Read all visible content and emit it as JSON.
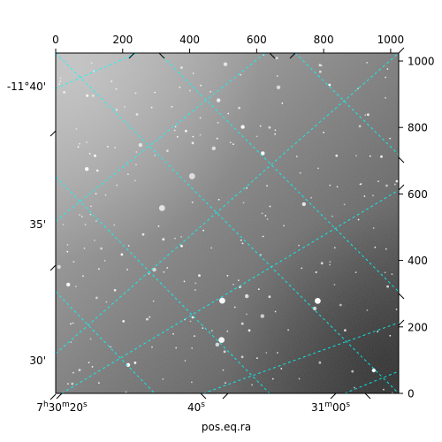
{
  "chart_data": {
    "type": "image",
    "colormap": "gray",
    "xlabel": "pos.eq.ra",
    "ylabel": "",
    "pixel_axes": {
      "x": {
        "range": [
          0,
          1024
        ],
        "ticks": [
          0,
          200,
          400,
          600,
          800,
          1000
        ],
        "labels": [
          "0",
          "200",
          "400",
          "600",
          "800",
          "1000"
        ],
        "position": "top"
      },
      "y": {
        "range": [
          0,
          1024
        ],
        "ticks": [
          0,
          200,
          400,
          600,
          800,
          1000
        ],
        "labels": [
          "0",
          "200",
          "400",
          "600",
          "800",
          "1000"
        ],
        "position": "right"
      }
    },
    "world_axes": {
      "ra": {
        "position": "bottom",
        "labels": [
          "7h30m20s",
          "40s",
          "31m00s"
        ]
      },
      "dec": {
        "position": "left",
        "labels": [
          "30'",
          "35'",
          "-11°40'"
        ]
      }
    },
    "grid": {
      "color": "#00ffff",
      "style": "dashed",
      "on": true
    }
  }
}
